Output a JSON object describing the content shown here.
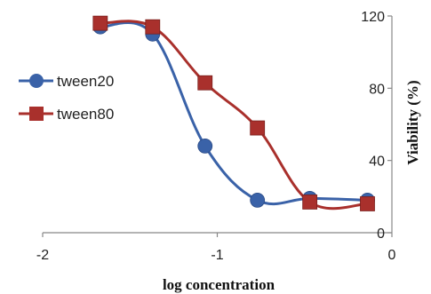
{
  "chart_data": {
    "type": "line",
    "title": "",
    "xlabel": "log concentration",
    "ylabel": "Viability (%)",
    "xlim": [
      -2,
      0
    ],
    "ylim": [
      0,
      120
    ],
    "x_ticks": [
      "-2",
      "-1",
      "0"
    ],
    "y_ticks": [
      "0",
      "40",
      "80",
      "120"
    ],
    "grid": false,
    "smooth": true,
    "legend_position": "left",
    "series": [
      {
        "name": "tween20",
        "color": "#3a62a8",
        "marker": "circle",
        "x": [
          -1.67,
          -1.37,
          -1.07,
          -0.77,
          -0.47,
          -0.14
        ],
        "y": [
          114,
          110,
          48,
          18,
          19,
          18
        ]
      },
      {
        "name": "tween80",
        "color": "#a9302c",
        "marker": "square",
        "x": [
          -1.67,
          -1.37,
          -1.07,
          -0.77,
          -0.47,
          -0.14
        ],
        "y": [
          116,
          114,
          83,
          58,
          17,
          16
        ]
      }
    ]
  }
}
